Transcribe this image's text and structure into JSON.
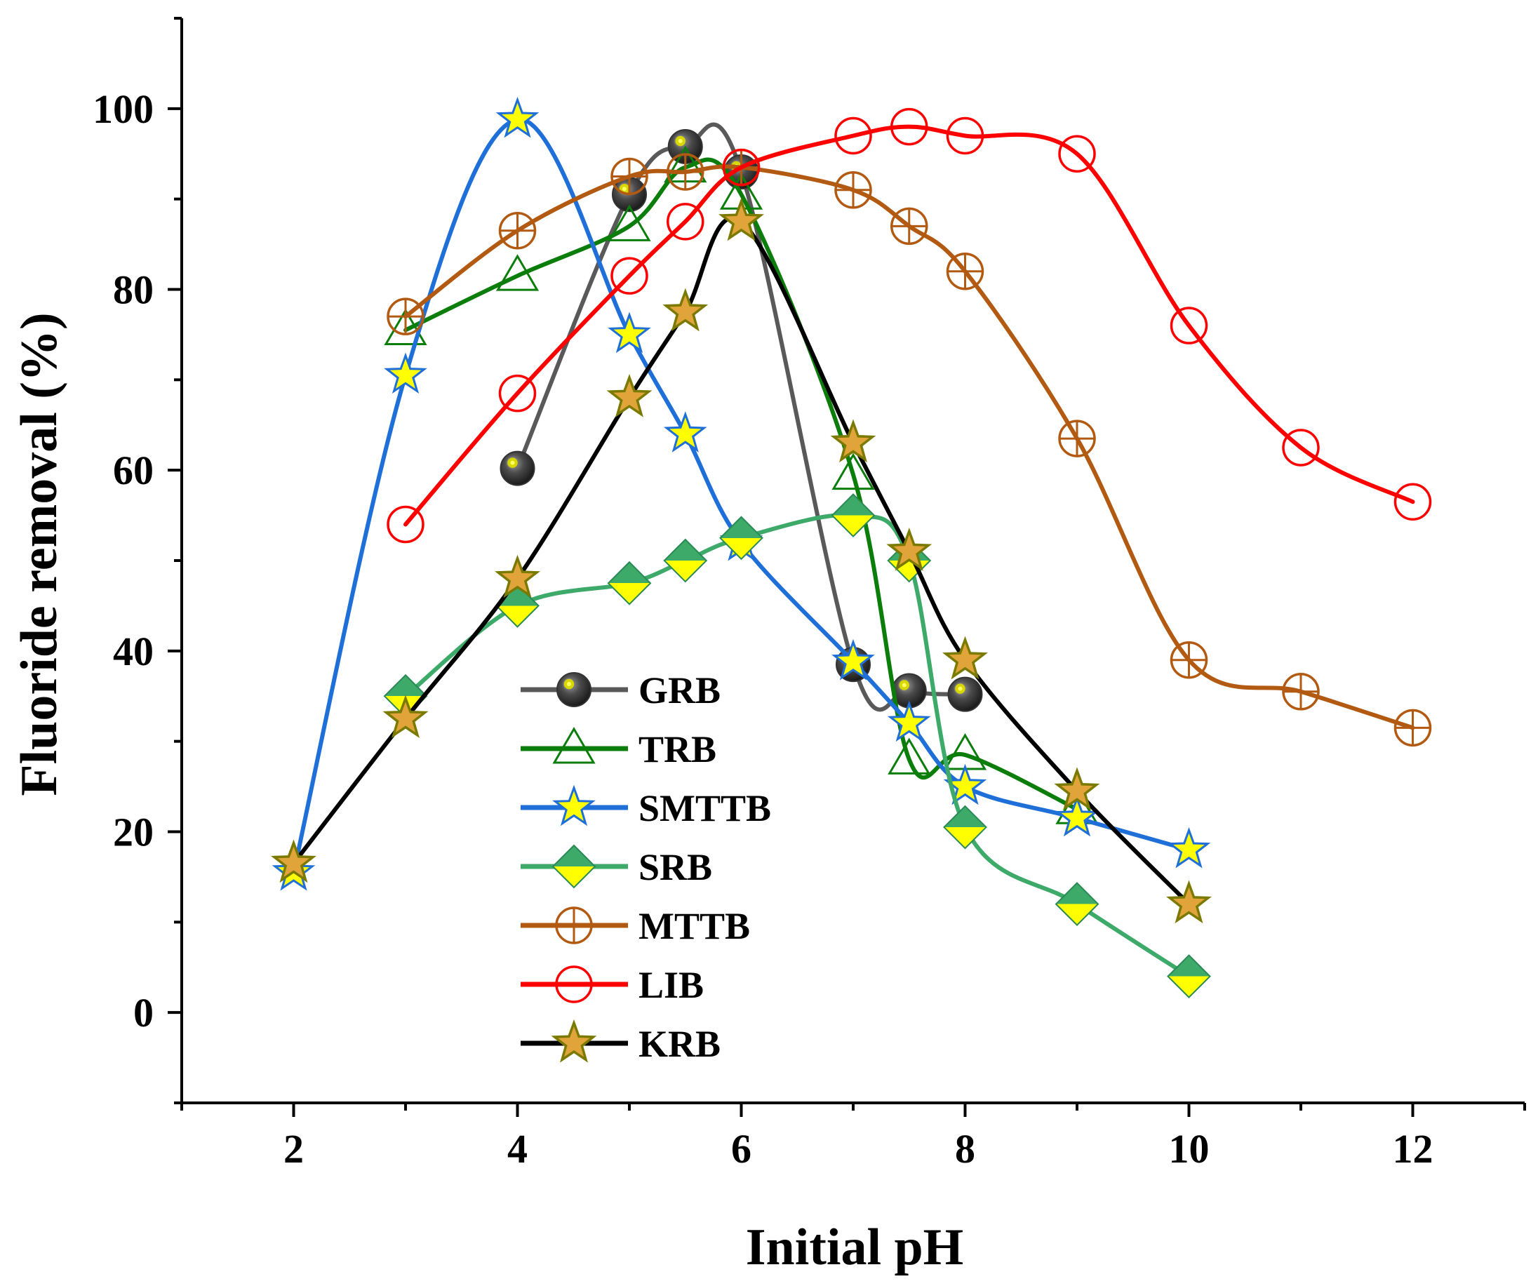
{
  "chart_data": {
    "type": "line",
    "title": "",
    "xlabel": "Initial pH",
    "ylabel": "Fluoride removal (%)",
    "xlim": [
      1,
      13
    ],
    "ylim": [
      -10,
      110
    ],
    "x_ticks": [
      2,
      4,
      6,
      8,
      10,
      12
    ],
    "y_ticks": [
      0,
      20,
      40,
      60,
      80,
      100
    ],
    "x_tick_labels": [
      "2",
      "4",
      "6",
      "8",
      "10",
      "12"
    ],
    "y_tick_labels": [
      "0",
      "20",
      "40",
      "60",
      "80",
      "100"
    ],
    "legend_position": "lower-center",
    "series": [
      {
        "name": "GRB",
        "color": "#595959",
        "marker": "sphere",
        "x": [
          4,
          5,
          5.5,
          6,
          7,
          7.5,
          8
        ],
        "y": [
          60.2,
          90.5,
          95.8,
          93.0,
          38.5,
          35.6,
          35.2
        ]
      },
      {
        "name": "TRB",
        "color": "#0a7d0a",
        "marker": "triangle",
        "x": [
          3,
          4,
          5,
          5.5,
          6,
          7,
          7.5,
          8,
          9
        ],
        "y": [
          75.5,
          81.5,
          87.0,
          93.5,
          90.5,
          59.5,
          28.0,
          28.5,
          22.5
        ]
      },
      {
        "name": "SMTTB",
        "color": "#1f6fd8",
        "marker": "star",
        "x": [
          2,
          3,
          4,
          5,
          5.5,
          6,
          7,
          7.5,
          8,
          9,
          10
        ],
        "y": [
          15.5,
          70.5,
          98.8,
          75.0,
          64.0,
          52.0,
          38.8,
          32.0,
          25.0,
          21.5,
          18.0
        ]
      },
      {
        "name": "SRB",
        "color": "#3daa6a",
        "marker": "diamond",
        "x": [
          3,
          4,
          5,
          5.5,
          6,
          7,
          7.5,
          8,
          9,
          10
        ],
        "y": [
          35.0,
          45.0,
          47.5,
          50.0,
          52.5,
          55.0,
          50.0,
          20.5,
          12.0,
          4.0
        ]
      },
      {
        "name": "MTTB",
        "color": "#b35a12",
        "marker": "circle-plus",
        "x": [
          3,
          4,
          5,
          5.5,
          6,
          7,
          7.5,
          8,
          9,
          10,
          11,
          12
        ],
        "y": [
          77.0,
          86.5,
          92.5,
          93.0,
          93.5,
          91.0,
          87.0,
          82.0,
          63.5,
          39.0,
          35.5,
          31.5
        ]
      },
      {
        "name": "LIB",
        "color": "#ff0000",
        "marker": "circle",
        "x": [
          3,
          4,
          5,
          5.5,
          6,
          7,
          7.5,
          8,
          9,
          10,
          11,
          12
        ],
        "y": [
          54.0,
          68.5,
          81.5,
          87.5,
          93.5,
          97.0,
          98.0,
          97.0,
          95.0,
          76.0,
          62.5,
          56.5
        ]
      },
      {
        "name": "KRB",
        "color": "#000000",
        "marker": "star-gold",
        "x": [
          2,
          3,
          4,
          5,
          5.5,
          6,
          7,
          7.5,
          8,
          9,
          10
        ],
        "y": [
          16.5,
          32.5,
          48.0,
          68.0,
          77.5,
          87.5,
          63.0,
          51.0,
          39.0,
          24.5,
          12.0
        ]
      }
    ]
  }
}
